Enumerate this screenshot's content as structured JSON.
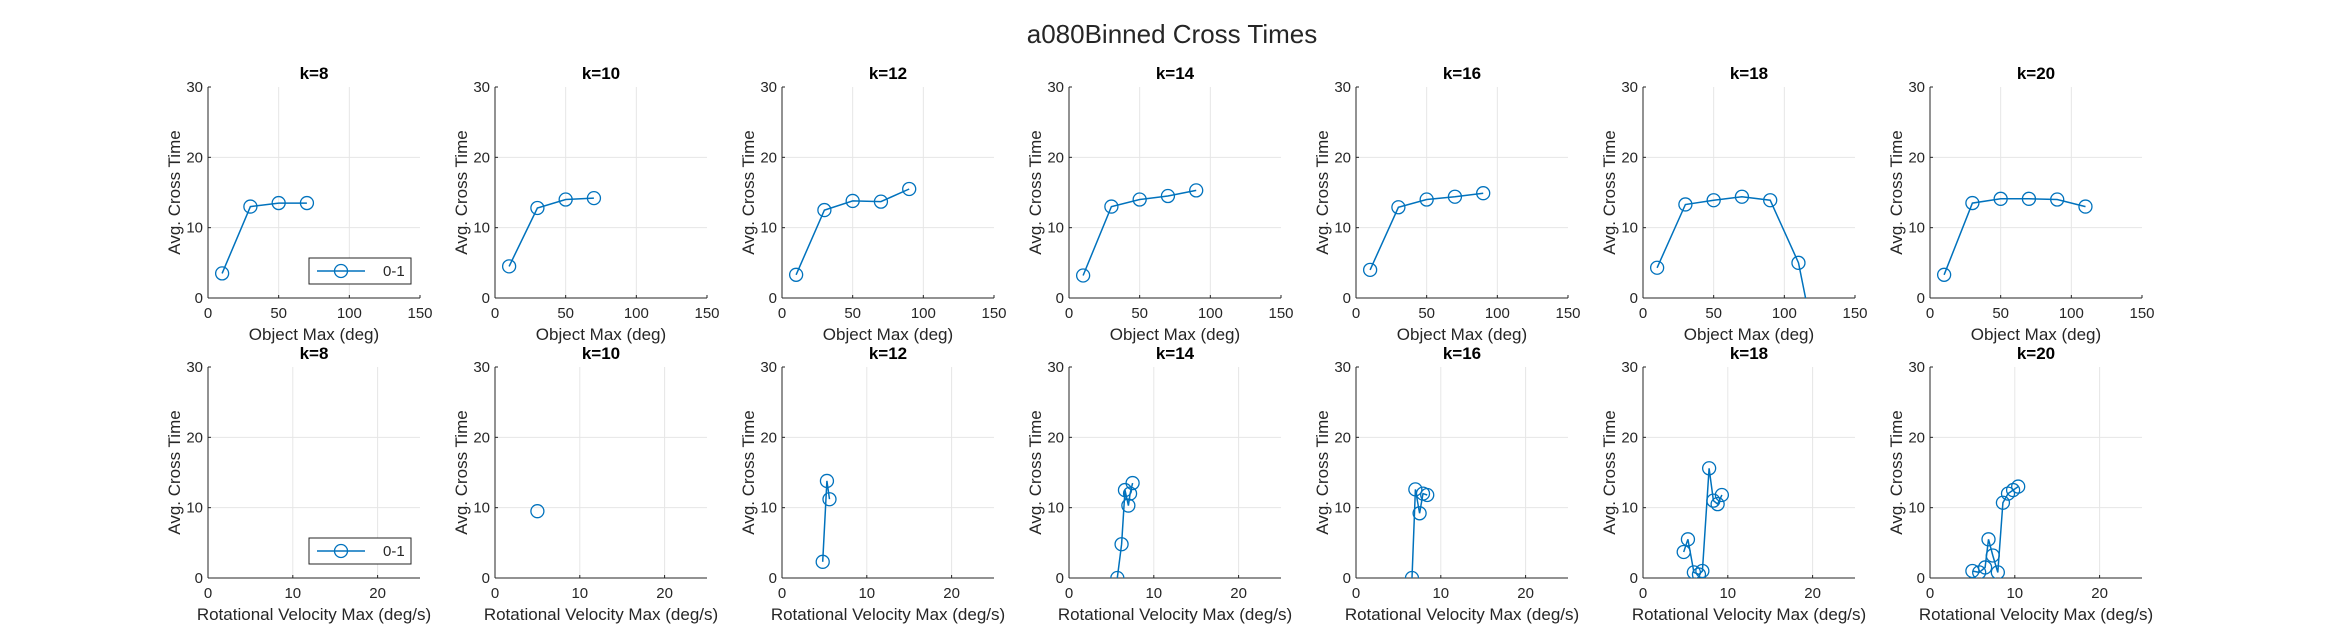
{
  "figure_title": "a080Binned Cross Times",
  "chart_data": [
    {
      "type": "line",
      "row": "object",
      "title": "k=8",
      "xlabel": "Object Max (deg)",
      "ylabel": "Avg. Cross Time",
      "xlim": [
        0,
        150
      ],
      "ylim": [
        0,
        30
      ],
      "xticks": [
        0,
        50,
        100,
        150
      ],
      "yticks": [
        0,
        10,
        20,
        30
      ],
      "grid": true,
      "legend": {
        "entries": [
          "0-1"
        ],
        "location": "bottom-right"
      },
      "series": [
        {
          "name": "0-1",
          "marker": "circle",
          "color": "#0072BD",
          "x": [
            10,
            30,
            50,
            70
          ],
          "y": [
            3.5,
            13.0,
            13.5,
            13.5
          ]
        }
      ]
    },
    {
      "type": "line",
      "row": "object",
      "title": "k=10",
      "xlabel": "Object Max (deg)",
      "ylabel": "Avg. Cross Time",
      "xlim": [
        0,
        150
      ],
      "ylim": [
        0,
        30
      ],
      "xticks": [
        0,
        50,
        100,
        150
      ],
      "yticks": [
        0,
        10,
        20,
        30
      ],
      "grid": true,
      "series": [
        {
          "name": "0-1",
          "marker": "circle",
          "color": "#0072BD",
          "x": [
            10,
            30,
            50,
            70
          ],
          "y": [
            4.5,
            12.8,
            14.0,
            14.2
          ]
        }
      ]
    },
    {
      "type": "line",
      "row": "object",
      "title": "k=12",
      "xlabel": "Object Max (deg)",
      "ylabel": "Avg. Cross Time",
      "xlim": [
        0,
        150
      ],
      "ylim": [
        0,
        30
      ],
      "xticks": [
        0,
        50,
        100,
        150
      ],
      "yticks": [
        0,
        10,
        20,
        30
      ],
      "grid": true,
      "series": [
        {
          "name": "0-1",
          "marker": "circle",
          "color": "#0072BD",
          "x": [
            10,
            30,
            50,
            70,
            90
          ],
          "y": [
            3.3,
            12.5,
            13.8,
            13.7,
            15.5
          ]
        }
      ]
    },
    {
      "type": "line",
      "row": "object",
      "title": "k=14",
      "xlabel": "Object Max (deg)",
      "ylabel": "Avg. Cross Time",
      "xlim": [
        0,
        150
      ],
      "ylim": [
        0,
        30
      ],
      "xticks": [
        0,
        50,
        100,
        150
      ],
      "yticks": [
        0,
        10,
        20,
        30
      ],
      "grid": true,
      "series": [
        {
          "name": "0-1",
          "marker": "circle",
          "color": "#0072BD",
          "x": [
            10,
            30,
            50,
            70,
            90
          ],
          "y": [
            3.2,
            13.0,
            14.0,
            14.5,
            15.3
          ]
        }
      ]
    },
    {
      "type": "line",
      "row": "object",
      "title": "k=16",
      "xlabel": "Object Max (deg)",
      "ylabel": "Avg. Cross Time",
      "xlim": [
        0,
        150
      ],
      "ylim": [
        0,
        30
      ],
      "xticks": [
        0,
        50,
        100,
        150
      ],
      "yticks": [
        0,
        10,
        20,
        30
      ],
      "grid": true,
      "series": [
        {
          "name": "0-1",
          "marker": "circle",
          "color": "#0072BD",
          "x": [
            10,
            30,
            50,
            70,
            90
          ],
          "y": [
            4.0,
            12.9,
            14.0,
            14.4,
            14.9
          ]
        }
      ]
    },
    {
      "type": "line",
      "row": "object",
      "title": "k=18",
      "xlabel": "Object Max (deg)",
      "ylabel": "Avg. Cross Time",
      "xlim": [
        0,
        150
      ],
      "ylim": [
        0,
        30
      ],
      "xticks": [
        0,
        50,
        100,
        150
      ],
      "yticks": [
        0,
        10,
        20,
        30
      ],
      "grid": true,
      "series": [
        {
          "name": "0-1",
          "marker": "circle",
          "color": "#0072BD",
          "x": [
            10,
            30,
            50,
            70,
            90,
            110,
            118
          ],
          "y": [
            4.3,
            13.3,
            13.9,
            14.4,
            13.9,
            5.0,
            -3.0
          ]
        }
      ]
    },
    {
      "type": "line",
      "row": "object",
      "title": "k=20",
      "xlabel": "Object Max (deg)",
      "ylabel": "Avg. Cross Time",
      "xlim": [
        0,
        150
      ],
      "ylim": [
        0,
        30
      ],
      "xticks": [
        0,
        50,
        100,
        150
      ],
      "yticks": [
        0,
        10,
        20,
        30
      ],
      "grid": true,
      "series": [
        {
          "name": "0-1",
          "marker": "circle",
          "color": "#0072BD",
          "x": [
            10,
            30,
            50,
            70,
            90,
            110
          ],
          "y": [
            3.3,
            13.5,
            14.1,
            14.1,
            14.0,
            13.0
          ]
        }
      ]
    },
    {
      "type": "line",
      "row": "rotational",
      "title": "k=8",
      "xlabel": "Rotational Velocity Max (deg/s)",
      "ylabel": "Avg. Cross Time",
      "xlim": [
        0,
        25
      ],
      "ylim": [
        0,
        30
      ],
      "xticks": [
        0,
        10,
        20
      ],
      "yticks": [
        0,
        10,
        20,
        30
      ],
      "grid": true,
      "legend": {
        "entries": [
          "0-1"
        ],
        "location": "bottom-right"
      },
      "series": [
        {
          "name": "0-1",
          "marker": "circle",
          "color": "#0072BD",
          "x": [],
          "y": []
        }
      ]
    },
    {
      "type": "line",
      "row": "rotational",
      "title": "k=10",
      "xlabel": "Rotational Velocity Max (deg/s)",
      "ylabel": "Avg. Cross Time",
      "xlim": [
        0,
        25
      ],
      "ylim": [
        0,
        30
      ],
      "xticks": [
        0,
        10,
        20
      ],
      "yticks": [
        0,
        10,
        20,
        30
      ],
      "grid": true,
      "series": [
        {
          "name": "0-1",
          "marker": "circle",
          "color": "#0072BD",
          "x": [
            5.0
          ],
          "y": [
            9.5
          ]
        }
      ]
    },
    {
      "type": "line",
      "row": "rotational",
      "title": "k=12",
      "xlabel": "Rotational Velocity Max (deg/s)",
      "ylabel": "Avg. Cross Time",
      "xlim": [
        0,
        25
      ],
      "ylim": [
        0,
        30
      ],
      "xticks": [
        0,
        10,
        20
      ],
      "yticks": [
        0,
        10,
        20,
        30
      ],
      "grid": true,
      "series": [
        {
          "name": "0-1",
          "marker": "circle",
          "color": "#0072BD",
          "x": [
            4.8,
            5.3,
            5.6
          ],
          "y": [
            2.3,
            13.8,
            11.2
          ]
        }
      ]
    },
    {
      "type": "line",
      "row": "rotational",
      "title": "k=14",
      "xlabel": "Rotational Velocity Max (deg/s)",
      "ylabel": "Avg. Cross Time",
      "xlim": [
        0,
        25
      ],
      "ylim": [
        0,
        30
      ],
      "xticks": [
        0,
        10,
        20
      ],
      "yticks": [
        0,
        10,
        20,
        30
      ],
      "grid": true,
      "series": [
        {
          "name": "0-1",
          "marker": "circle",
          "color": "#0072BD",
          "x": [
            5.7,
            6.2,
            6.6,
            7.0,
            7.2,
            7.5
          ],
          "y": [
            0,
            4.8,
            12.5,
            10.3,
            12.0,
            13.5
          ]
        }
      ]
    },
    {
      "type": "line",
      "row": "rotational",
      "title": "k=16",
      "xlabel": "Rotational Velocity Max (deg/s)",
      "ylabel": "Avg. Cross Time",
      "xlim": [
        0,
        25
      ],
      "ylim": [
        0,
        30
      ],
      "xticks": [
        0,
        10,
        20
      ],
      "yticks": [
        0,
        10,
        20,
        30
      ],
      "grid": true,
      "series": [
        {
          "name": "0-1",
          "marker": "circle",
          "color": "#0072BD",
          "x": [
            6.6,
            7.0,
            7.5,
            7.9,
            8.4
          ],
          "y": [
            0,
            12.6,
            9.2,
            12.0,
            11.8
          ]
        }
      ]
    },
    {
      "type": "line",
      "row": "rotational",
      "title": "k=18",
      "xlabel": "Rotational Velocity Max (deg/s)",
      "ylabel": "Avg. Cross Time",
      "xlim": [
        0,
        25
      ],
      "ylim": [
        0,
        30
      ],
      "xticks": [
        0,
        10,
        20
      ],
      "yticks": [
        0,
        10,
        20,
        30
      ],
      "grid": true,
      "series": [
        {
          "name": "0-1",
          "marker": "circle",
          "color": "#0072BD",
          "x": [
            4.8,
            5.3,
            6.0,
            6.6,
            7.0,
            7.8,
            8.3,
            8.8,
            9.3
          ],
          "y": [
            3.7,
            5.5,
            0.8,
            0.5,
            1.0,
            15.6,
            11.0,
            10.5,
            11.8
          ]
        }
      ]
    },
    {
      "type": "line",
      "row": "rotational",
      "title": "k=20",
      "xlabel": "Rotational Velocity Max (deg/s)",
      "ylabel": "Avg. Cross Time",
      "xlim": [
        0,
        25
      ],
      "ylim": [
        0,
        30
      ],
      "xticks": [
        0,
        10,
        20
      ],
      "yticks": [
        0,
        10,
        20,
        30
      ],
      "grid": true,
      "series": [
        {
          "name": "0-1",
          "marker": "circle",
          "color": "#0072BD",
          "x": [
            5.0,
            5.8,
            6.5,
            6.9,
            7.4,
            8.0,
            8.6,
            9.2,
            9.8,
            10.4
          ],
          "y": [
            1.0,
            0.8,
            1.5,
            5.5,
            3.2,
            0.8,
            10.7,
            12.0,
            12.5,
            13.0
          ]
        }
      ]
    }
  ]
}
